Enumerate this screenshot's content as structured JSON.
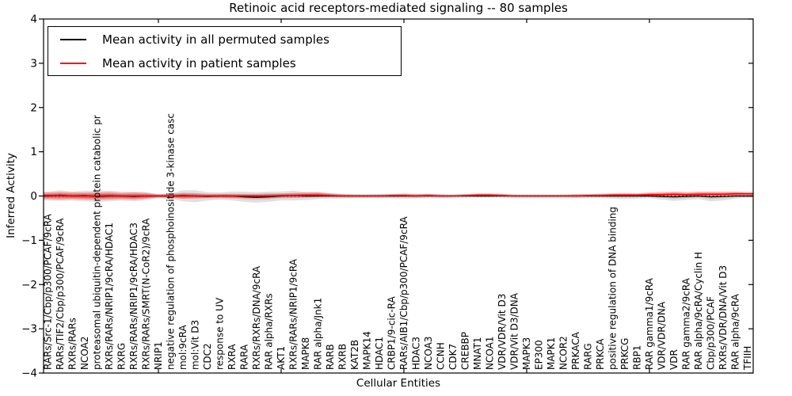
{
  "chart_data": {
    "type": "line",
    "title": "Retinoic acid receptors-mediated signaling -- 80 samples",
    "xlabel": "Cellular Entities",
    "ylabel": "Inferred Activity",
    "ylim": [
      -4,
      4
    ],
    "yticks": [
      4,
      3,
      2,
      1,
      0,
      -1,
      -2,
      -3,
      -4
    ],
    "x_major_tick_indices": [
      9,
      19,
      29,
      39,
      49
    ],
    "grid": false,
    "zero_line_style": "dotted",
    "legend": {
      "position": "upper-left",
      "entries": [
        {
          "label": "Mean activity in all permuted samples",
          "color": "#000000"
        },
        {
          "label": "Mean activity in patient samples",
          "color": "#ff0000"
        }
      ]
    },
    "categories": [
      "RARs/Src-1/Cbp/p300/PCAF/9cRA",
      "RARs/TIF2/Cbp/p300/PCAF/9cRA",
      "RXRs/RARs",
      "NCOA2",
      "proteasomal ubiquitin-dependent protein catabolic pr",
      "RXRs/RARs/NRIP1/9cRA/HDAC1",
      "RXRG",
      "RXRs/RARs/NRIP1/9cRA/HDAC3",
      "RXRs/RARs/SMRT(N-CoR2)/9cRA",
      "NRIP1",
      "negative regulation of phosphoinositide 3-kinase casc",
      "mol:9cRA",
      "mol:Vit D3",
      "CDC2",
      "response to UV",
      "RXRA",
      "RARA",
      "RXRs/RXRs/DNA/9cRA",
      "RAR alpha/RXRs",
      "AKT1",
      "RXRs/RARs/NRIP1/9cRA",
      "MAPK8",
      "RAR alpha/Jnk1",
      "RARB",
      "RXRB",
      "KAT2B",
      "MAPK14",
      "HDAC1",
      "CRBP1/9-cic-RA",
      "RARs/AIB1/Cbp/p300/PCAF/9cRA",
      "HDAC3",
      "NCOA3",
      "CCNH",
      "CDK7",
      "CREBBP",
      "MNAT1",
      "NCOA1",
      "VDR/VDR/Vit D3",
      "VDR/Vit D3/DNA",
      "MAPK3",
      "EP300",
      "MAPK1",
      "NCOR2",
      "PRKACA",
      "RARG",
      "PRKCA",
      "positive regulation of DNA binding",
      "PRKCG",
      "RBP1",
      "RAR gamma1/9cRA",
      "VDR/VDR/DNA",
      "VDR",
      "RAR gamma2/9cRA",
      "RAR alpha/9cRA/Cyclin H",
      "Cbp/p300/PCAF",
      "RXRs/VDR/DNA/Vit D3",
      "RAR alpha/9cRA",
      "TFIIH"
    ],
    "series": [
      {
        "name": "Mean activity in all permuted samples",
        "color": "#000000",
        "band_color": "#909090",
        "values": [
          0.0,
          0.02,
          0.0,
          0.01,
          -0.01,
          0.0,
          0.0,
          -0.01,
          0.0,
          0.0,
          0.0,
          0.01,
          0.0,
          -0.01,
          0.0,
          0.0,
          -0.02,
          -0.03,
          -0.02,
          0.0,
          0.01,
          0.0,
          0.0,
          0.0,
          0.0,
          0.0,
          0.0,
          0.0,
          0.0,
          0.0,
          0.0,
          0.0,
          0.0,
          0.0,
          0.0,
          0.0,
          0.0,
          0.0,
          0.0,
          0.0,
          0.0,
          0.0,
          0.0,
          0.0,
          0.0,
          0.0,
          0.0,
          0.0,
          0.0,
          0.0,
          -0.01,
          -0.02,
          -0.01,
          0.0,
          -0.02,
          -0.01,
          0.0,
          0.0
        ],
        "band_low": [
          -0.1,
          -0.11,
          -0.1,
          -0.12,
          -0.13,
          -0.12,
          -0.1,
          -0.12,
          -0.09,
          -0.04,
          -0.06,
          -0.12,
          -0.14,
          -0.1,
          -0.08,
          -0.1,
          -0.13,
          -0.15,
          -0.13,
          -0.1,
          -0.1,
          -0.09,
          -0.07,
          -0.06,
          -0.05,
          -0.04,
          -0.04,
          -0.04,
          -0.05,
          -0.06,
          -0.05,
          -0.04,
          -0.04,
          -0.03,
          -0.03,
          -0.04,
          -0.04,
          -0.03,
          -0.03,
          -0.03,
          -0.03,
          -0.03,
          -0.03,
          -0.04,
          -0.04,
          -0.05,
          -0.06,
          -0.07,
          -0.06,
          -0.05,
          -0.08,
          -0.11,
          -0.09,
          -0.07,
          -0.12,
          -0.1,
          -0.06,
          -0.04
        ],
        "band_high": [
          0.1,
          0.13,
          0.1,
          0.12,
          0.12,
          0.12,
          0.1,
          0.1,
          0.09,
          0.04,
          0.06,
          0.13,
          0.13,
          0.09,
          0.08,
          0.1,
          0.1,
          0.09,
          0.1,
          0.1,
          0.12,
          0.09,
          0.08,
          0.06,
          0.05,
          0.04,
          0.04,
          0.05,
          0.05,
          0.06,
          0.05,
          0.05,
          0.04,
          0.03,
          0.04,
          0.04,
          0.04,
          0.04,
          0.03,
          0.03,
          0.03,
          0.03,
          0.03,
          0.04,
          0.04,
          0.05,
          0.05,
          0.05,
          0.05,
          0.05,
          0.04,
          0.04,
          0.04,
          0.04,
          0.04,
          0.04,
          0.04,
          0.05
        ]
      },
      {
        "name": "Mean activity in patient samples",
        "color": "#ff0000",
        "band_color": "#ff0000",
        "values": [
          0.01,
          0.01,
          0.0,
          0.0,
          0.0,
          0.01,
          0.0,
          0.0,
          0.0,
          0.0,
          0.0,
          0.0,
          0.0,
          0.0,
          0.0,
          0.0,
          0.0,
          0.0,
          0.0,
          0.01,
          0.01,
          0.02,
          0.02,
          0.01,
          0.0,
          0.0,
          0.0,
          0.0,
          0.01,
          0.01,
          0.0,
          0.01,
          0.0,
          0.0,
          0.01,
          0.02,
          0.02,
          0.01,
          0.0,
          0.0,
          0.0,
          0.0,
          0.0,
          0.0,
          0.01,
          0.01,
          0.02,
          0.02,
          0.02,
          0.03,
          0.03,
          0.04,
          0.03,
          0.04,
          0.04,
          0.04,
          0.05,
          0.05
        ],
        "band_low": [
          -0.07,
          -0.08,
          -0.07,
          -0.08,
          -0.09,
          -0.08,
          -0.07,
          -0.08,
          -0.06,
          -0.03,
          -0.04,
          -0.06,
          -0.05,
          -0.04,
          -0.04,
          -0.05,
          -0.05,
          -0.05,
          -0.05,
          -0.04,
          -0.04,
          -0.03,
          -0.02,
          -0.02,
          -0.02,
          -0.02,
          -0.02,
          -0.02,
          -0.02,
          -0.02,
          -0.02,
          -0.01,
          -0.02,
          -0.01,
          -0.01,
          0.0,
          0.0,
          -0.01,
          -0.01,
          -0.01,
          -0.01,
          -0.01,
          -0.01,
          -0.01,
          -0.01,
          -0.01,
          0.0,
          0.0,
          0.0,
          0.0,
          0.0,
          0.0,
          0.0,
          0.0,
          0.0,
          0.01,
          0.01,
          0.02
        ],
        "band_high": [
          0.08,
          0.09,
          0.08,
          0.08,
          0.08,
          0.09,
          0.07,
          0.08,
          0.07,
          0.04,
          0.05,
          0.07,
          0.06,
          0.05,
          0.05,
          0.05,
          0.05,
          0.05,
          0.06,
          0.06,
          0.07,
          0.08,
          0.09,
          0.06,
          0.04,
          0.03,
          0.03,
          0.03,
          0.04,
          0.05,
          0.04,
          0.05,
          0.03,
          0.03,
          0.04,
          0.06,
          0.06,
          0.05,
          0.03,
          0.03,
          0.03,
          0.03,
          0.03,
          0.04,
          0.04,
          0.05,
          0.06,
          0.07,
          0.06,
          0.08,
          0.09,
          0.1,
          0.09,
          0.1,
          0.1,
          0.1,
          0.1,
          0.09
        ]
      }
    ]
  }
}
